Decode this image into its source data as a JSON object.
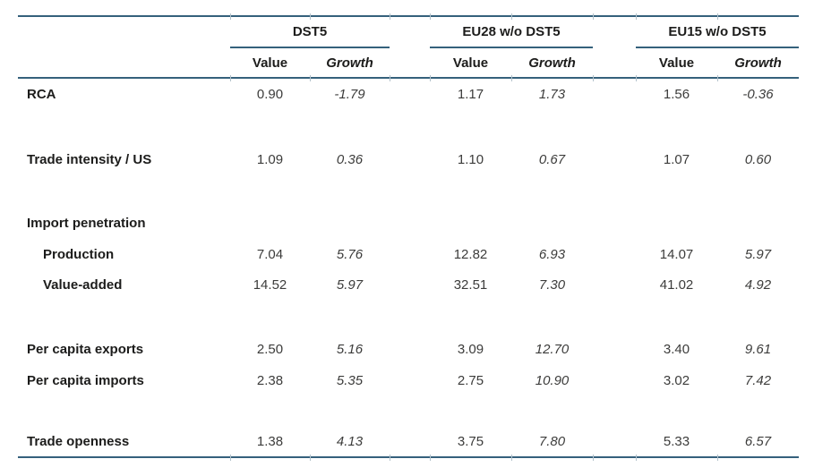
{
  "colors": {
    "rule": "#35617c",
    "tick": "#b3c2cb",
    "label_text": "#1c1c1b",
    "number_text": "#3c3c3b",
    "background": "#ffffff"
  },
  "table": {
    "groups": [
      {
        "label": "DST5"
      },
      {
        "label": "EU28 w/o DST5"
      },
      {
        "label": "EU15 w/o DST5"
      }
    ],
    "value_header": "Value",
    "growth_header": "Growth",
    "rows": [
      {
        "label": "RCA",
        "indent": false,
        "section_header": false,
        "cells": [
          [
            "0.90",
            "-1.79"
          ],
          [
            "1.17",
            "1.73"
          ],
          [
            "1.56",
            "-0.36"
          ]
        ]
      },
      {
        "label": "Trade intensity / US",
        "indent": false,
        "section_header": false,
        "cells": [
          [
            "1.09",
            "0.36"
          ],
          [
            "1.10",
            "0.67"
          ],
          [
            "1.07",
            "0.60"
          ]
        ]
      },
      {
        "label": "Import penetration",
        "indent": false,
        "section_header": true,
        "cells": null
      },
      {
        "label": "Production",
        "indent": true,
        "section_header": false,
        "cells": [
          [
            "7.04",
            "5.76"
          ],
          [
            "12.82",
            "6.93"
          ],
          [
            "14.07",
            "5.97"
          ]
        ]
      },
      {
        "label": "Value-added",
        "indent": true,
        "section_header": false,
        "cells": [
          [
            "14.52",
            "5.97"
          ],
          [
            "32.51",
            "7.30"
          ],
          [
            "41.02",
            "4.92"
          ]
        ]
      },
      {
        "label": "Per capita exports",
        "indent": false,
        "section_header": false,
        "cells": [
          [
            "2.50",
            "5.16"
          ],
          [
            "3.09",
            "12.70"
          ],
          [
            "3.40",
            "9.61"
          ]
        ]
      },
      {
        "label": "Per capita imports",
        "indent": false,
        "section_header": false,
        "cells": [
          [
            "2.38",
            "5.35"
          ],
          [
            "2.75",
            "10.90"
          ],
          [
            "3.02",
            "7.42"
          ]
        ]
      },
      {
        "label": "Trade openness",
        "indent": false,
        "section_header": false,
        "cells": [
          [
            "1.38",
            "4.13"
          ],
          [
            "3.75",
            "7.80"
          ],
          [
            "5.33",
            "6.57"
          ]
        ]
      }
    ]
  }
}
